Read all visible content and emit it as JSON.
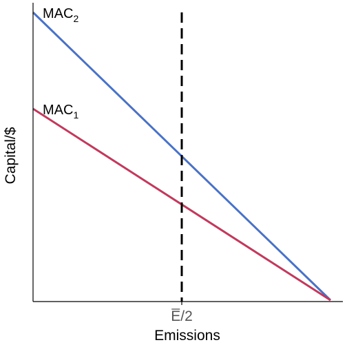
{
  "chart_data": {
    "type": "line",
    "xlabel": "Emissions",
    "ylabel": "Capital/$",
    "xlim": [
      0,
      1
    ],
    "ylim": [
      0,
      1
    ],
    "x_ticks": [
      {
        "value": 0.5,
        "bar": "E",
        "suffix": "/2"
      }
    ],
    "series": [
      {
        "name": "MAC",
        "subscript": "2",
        "color": "#4a72c4",
        "x": [
          0,
          1
        ],
        "y": [
          1.0,
          0
        ]
      },
      {
        "name": "MAC",
        "subscript": "1",
        "color": "#c03a5c",
        "x": [
          0,
          1
        ],
        "y": [
          0.665,
          0
        ]
      }
    ],
    "reference_line": {
      "x": 0.5,
      "style": "dashed",
      "color": "#000000"
    },
    "grid": false,
    "legend": "none"
  }
}
